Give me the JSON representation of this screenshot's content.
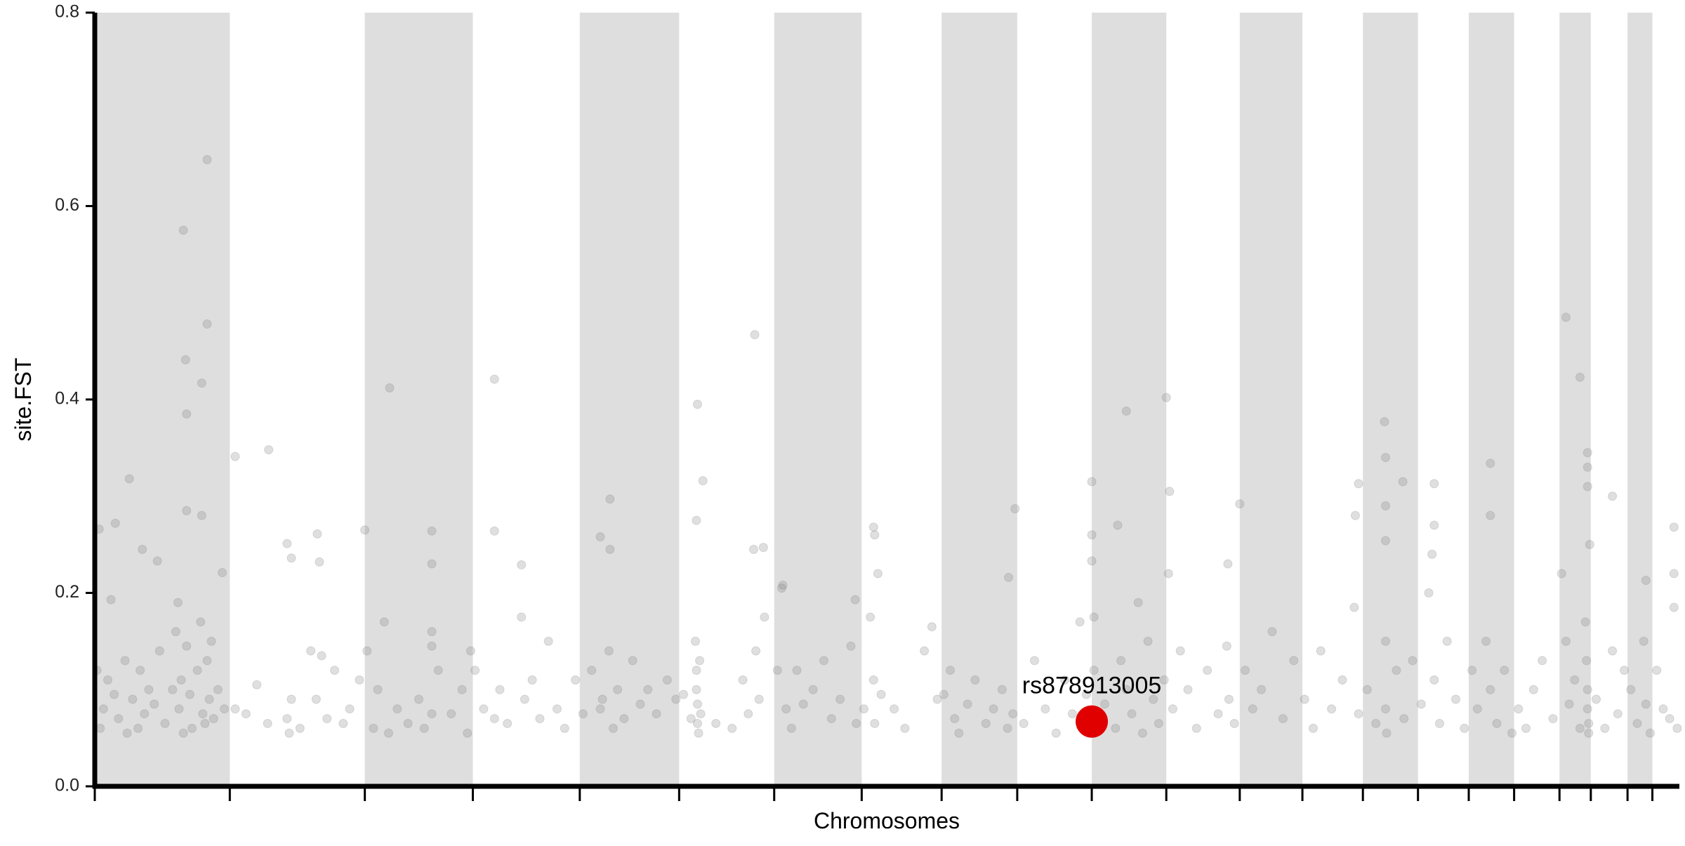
{
  "chart_data": {
    "type": "scatter",
    "xlabel": "Chromosomes",
    "ylabel": "site.FST",
    "xlim": [
      0,
      1467
    ],
    "xticks": [
      0,
      125,
      250,
      350,
      449,
      541,
      629,
      710,
      784,
      854,
      923,
      992,
      1060,
      1118,
      1174,
      1225,
      1272,
      1314,
      1356,
      1385,
      1419,
      1442
    ],
    "bands": [
      [
        0,
        125
      ],
      [
        250,
        350
      ],
      [
        449,
        541
      ],
      [
        629,
        710
      ],
      [
        784,
        854
      ],
      [
        923,
        992
      ],
      [
        1060,
        1118
      ],
      [
        1174,
        1225
      ],
      [
        1272,
        1314
      ],
      [
        1356,
        1385
      ],
      [
        1419,
        1442
      ]
    ],
    "band_color": "#dedede",
    "ylim": [
      0,
      0.8
    ],
    "yticks": [
      {
        "value": 0,
        "label": "0.0"
      },
      0.2,
      0.4,
      0.6,
      0.8
    ],
    "series": [
      {
        "color": "#7f7f7f",
        "alpha": 0.25,
        "x": [
          82,
          104,
          104,
          84,
          99,
          85,
          85,
          99,
          32,
          19,
          4,
          15,
          44,
          58,
          77,
          118,
          130,
          161,
          178,
          182,
          206,
          208,
          250,
          273,
          312,
          312,
          370,
          370,
          395,
          468,
          477,
          477,
          558,
          563,
          557,
          611,
          610,
          619,
          637,
          704,
          721,
          722,
          725,
          852,
          846,
          923,
          923,
          923,
          947,
          955,
          992,
          995,
          994,
          1060,
          1049,
          1170,
          1167,
          1194,
          1195,
          1195,
          1195,
          1211,
          1240,
          1240,
          1238,
          1292,
          1292,
          1362,
          1375,
          1382,
          1382,
          1382,
          1405,
          1462,
          1462,
          1436,
          2,
          5,
          8,
          12,
          18,
          22,
          28,
          30,
          35,
          40,
          42,
          46,
          50,
          55,
          60,
          65,
          72,
          75,
          78,
          80,
          82,
          85,
          88,
          90,
          95,
          98,
          100,
          102,
          104,
          106,
          108,
          110,
          114,
          120,
          130,
          140,
          150,
          160,
          178,
          180,
          182,
          190,
          200,
          205,
          210,
          215,
          222,
          230,
          236,
          245,
          252,
          258,
          262,
          268,
          272,
          280,
          290,
          300,
          305,
          312,
          312,
          312,
          318,
          330,
          340,
          345,
          348,
          352,
          360,
          370,
          375,
          382,
          395,
          398,
          405,
          412,
          420,
          428,
          435,
          445,
          452,
          460,
          468,
          470,
          476,
          480,
          484,
          490,
          498,
          505,
          512,
          520,
          530,
          538,
          545,
          552,
          556,
          557,
          557,
          558,
          558,
          559,
          560,
          561,
          575,
          590,
          600,
          605,
          612,
          615,
          620,
          632,
          636,
          640,
          645,
          650,
          656,
          665,
          675,
          682,
          690,
          700,
          705,
          712,
          718,
          721,
          722,
          728,
          740,
          750,
          768,
          775,
          780,
          786,
          792,
          796,
          800,
          808,
          815,
          825,
          832,
          840,
          845,
          850,
          860,
          870,
          880,
          890,
          898,
          905,
          912,
          918,
          925,
          925,
          928,
          935,
          945,
          950,
          955,
          960,
          966,
          970,
          975,
          980,
          985,
          990,
          998,
          1005,
          1012,
          1020,
          1030,
          1040,
          1048,
          1050,
          1055,
          1065,
          1072,
          1080,
          1090,
          1100,
          1110,
          1120,
          1128,
          1135,
          1145,
          1155,
          1166,
          1170,
          1178,
          1186,
          1195,
          1195,
          1196,
          1205,
          1212,
          1220,
          1228,
          1235,
          1240,
          1245,
          1252,
          1260,
          1268,
          1275,
          1280,
          1288,
          1292,
          1298,
          1305,
          1312,
          1318,
          1325,
          1332,
          1340,
          1350,
          1358,
          1362,
          1365,
          1370,
          1375,
          1380,
          1381,
          1382,
          1382,
          1383,
          1383,
          1384,
          1390,
          1398,
          1405,
          1410,
          1416,
          1422,
          1428,
          1434,
          1436,
          1440,
          1446,
          1452,
          1458,
          1462,
          1465
        ],
        "values": [
          0.575,
          0.648,
          0.478,
          0.441,
          0.417,
          0.385,
          0.285,
          0.28,
          0.318,
          0.272,
          0.266,
          0.193,
          0.245,
          0.233,
          0.19,
          0.221,
          0.341,
          0.348,
          0.251,
          0.236,
          0.261,
          0.232,
          0.265,
          0.412,
          0.264,
          0.23,
          0.421,
          0.264,
          0.229,
          0.258,
          0.297,
          0.245,
          0.395,
          0.316,
          0.275,
          0.467,
          0.245,
          0.247,
          0.208,
          0.193,
          0.268,
          0.26,
          0.22,
          0.287,
          0.216,
          0.315,
          0.26,
          0.233,
          0.27,
          0.388,
          0.402,
          0.305,
          0.22,
          0.292,
          0.23,
          0.313,
          0.28,
          0.377,
          0.34,
          0.29,
          0.254,
          0.315,
          0.313,
          0.27,
          0.24,
          0.334,
          0.28,
          0.485,
          0.423,
          0.345,
          0.33,
          0.31,
          0.3,
          0.268,
          0.22,
          0.213,
          0.12,
          0.06,
          0.08,
          0.11,
          0.095,
          0.07,
          0.13,
          0.055,
          0.09,
          0.06,
          0.12,
          0.075,
          0.1,
          0.085,
          0.14,
          0.065,
          0.1,
          0.16,
          0.08,
          0.11,
          0.055,
          0.145,
          0.095,
          0.06,
          0.12,
          0.17,
          0.075,
          0.065,
          0.13,
          0.09,
          0.15,
          0.07,
          0.1,
          0.08,
          0.08,
          0.075,
          0.105,
          0.065,
          0.07,
          0.055,
          0.09,
          0.06,
          0.14,
          0.09,
          0.135,
          0.07,
          0.12,
          0.065,
          0.08,
          0.11,
          0.14,
          0.06,
          0.1,
          0.17,
          0.055,
          0.08,
          0.065,
          0.09,
          0.06,
          0.16,
          0.145,
          0.075,
          0.12,
          0.075,
          0.1,
          0.055,
          0.14,
          0.12,
          0.08,
          0.07,
          0.1,
          0.065,
          0.175,
          0.09,
          0.11,
          0.07,
          0.15,
          0.08,
          0.06,
          0.11,
          0.075,
          0.12,
          0.08,
          0.09,
          0.14,
          0.06,
          0.1,
          0.07,
          0.13,
          0.085,
          0.1,
          0.075,
          0.11,
          0.09,
          0.095,
          0.07,
          0.15,
          0.12,
          0.1,
          0.085,
          0.065,
          0.055,
          0.13,
          0.075,
          0.065,
          0.06,
          0.11,
          0.075,
          0.14,
          0.09,
          0.175,
          0.12,
          0.205,
          0.08,
          0.06,
          0.12,
          0.085,
          0.1,
          0.13,
          0.07,
          0.09,
          0.145,
          0.065,
          0.08,
          0.175,
          0.11,
          0.065,
          0.095,
          0.08,
          0.06,
          0.14,
          0.165,
          0.09,
          0.095,
          0.12,
          0.07,
          0.055,
          0.085,
          0.11,
          0.065,
          0.08,
          0.1,
          0.06,
          0.075,
          0.065,
          0.13,
          0.08,
          0.055,
          0.11,
          0.075,
          0.17,
          0.095,
          0.175,
          0.12,
          0.07,
          0.085,
          0.06,
          0.13,
          0.1,
          0.075,
          0.19,
          0.055,
          0.15,
          0.09,
          0.065,
          0.11,
          0.08,
          0.14,
          0.1,
          0.06,
          0.12,
          0.075,
          0.145,
          0.09,
          0.065,
          0.12,
          0.08,
          0.1,
          0.16,
          0.07,
          0.13,
          0.09,
          0.06,
          0.14,
          0.08,
          0.11,
          0.185,
          0.075,
          0.1,
          0.065,
          0.15,
          0.08,
          0.055,
          0.12,
          0.07,
          0.13,
          0.085,
          0.2,
          0.11,
          0.065,
          0.15,
          0.09,
          0.06,
          0.12,
          0.08,
          0.15,
          0.1,
          0.065,
          0.12,
          0.055,
          0.08,
          0.06,
          0.1,
          0.13,
          0.07,
          0.22,
          0.15,
          0.085,
          0.11,
          0.06,
          0.17,
          0.13,
          0.1,
          0.08,
          0.065,
          0.055,
          0.25,
          0.09,
          0.06,
          0.14,
          0.075,
          0.12,
          0.1,
          0.065,
          0.15,
          0.085,
          0.055,
          0.12,
          0.08,
          0.07,
          0.185,
          0.06
        ]
      }
    ],
    "highlight": {
      "label": "rs878913005",
      "x": 923,
      "value": 0.067,
      "color": "#e00000"
    }
  }
}
